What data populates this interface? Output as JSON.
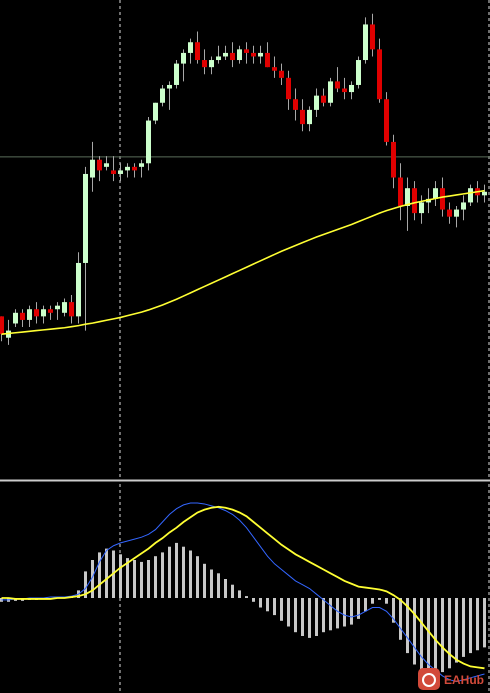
{
  "colors": {
    "background": "#000000",
    "bull_candle": "#ccffcc",
    "bear_candle": "#e00000",
    "wick": "#a8a8a8",
    "moving_average": "#ffff33",
    "signal_line": "#ffff33",
    "macd_line": "#3366ff",
    "histogram": "#c8c8c8",
    "grid_dashed": "#dddddd",
    "price_level_line": "#5a6e5a",
    "separator": "#cccccc",
    "watermark_bg": "#d24a3a"
  },
  "watermark": {
    "icon": "eahub-logo-icon",
    "text": "EAHub"
  },
  "chart_data": [
    {
      "type": "candlestick",
      "title": "",
      "xlabel": "",
      "ylabel": "",
      "ylim": [
        0,
        100
      ],
      "grid": "vertical-dashed",
      "legend": "none",
      "price_level": 63.8,
      "candles": [
        [
          19,
          19,
          12,
          14
        ],
        [
          13,
          18,
          11,
          15
        ],
        [
          17,
          21,
          16,
          20
        ],
        [
          20,
          21,
          16,
          18
        ],
        [
          18,
          22,
          16,
          21
        ],
        [
          21,
          23,
          17,
          19
        ],
        [
          19,
          22,
          17,
          21
        ],
        [
          21,
          22,
          18,
          20
        ],
        [
          21,
          23,
          18,
          22
        ],
        [
          20,
          24,
          19,
          23
        ],
        [
          23,
          25,
          17,
          19
        ],
        [
          19,
          37,
          17,
          34
        ],
        [
          34,
          61,
          15,
          59
        ],
        [
          58,
          68,
          54,
          63
        ],
        [
          63,
          64,
          57,
          60
        ],
        [
          61,
          64,
          60,
          62
        ],
        [
          60,
          64,
          57,
          59
        ],
        [
          59,
          62,
          57,
          60
        ],
        [
          60,
          62,
          58,
          61
        ],
        [
          61,
          62,
          58,
          60
        ],
        [
          61,
          63,
          58,
          62
        ],
        [
          62,
          75,
          60,
          74
        ],
        [
          74,
          79,
          73,
          79
        ],
        [
          79,
          84,
          78,
          83
        ],
        [
          83,
          85,
          77,
          84
        ],
        [
          84,
          91,
          83,
          90
        ],
        [
          90,
          94,
          85,
          93
        ],
        [
          93,
          97,
          90,
          96
        ],
        [
          96,
          99,
          90,
          91
        ],
        [
          91,
          94,
          87,
          89
        ],
        [
          89,
          92,
          87,
          91
        ],
        [
          91,
          95,
          90,
          92
        ],
        [
          92,
          95,
          91,
          93
        ],
        [
          93,
          96,
          89,
          91
        ],
        [
          91,
          95,
          90,
          94
        ],
        [
          94,
          96,
          90,
          93
        ],
        [
          93,
          95,
          90,
          92
        ],
        [
          92,
          95,
          90,
          93
        ],
        [
          93,
          96,
          89,
          89
        ],
        [
          89,
          92,
          86,
          88
        ],
        [
          88,
          90,
          84,
          86
        ],
        [
          86,
          88,
          77,
          80
        ],
        [
          80,
          83,
          74,
          77
        ],
        [
          77,
          80,
          71,
          73
        ],
        [
          73,
          78,
          71,
          77
        ],
        [
          77,
          83,
          75,
          81
        ],
        [
          81,
          83,
          78,
          79
        ],
        [
          79,
          86,
          78,
          85
        ],
        [
          85,
          89,
          82,
          83
        ],
        [
          83,
          86,
          80,
          82
        ],
        [
          82,
          85,
          80,
          84
        ],
        [
          84,
          92,
          83,
          91
        ],
        [
          91,
          103,
          90,
          101
        ],
        [
          101,
          104,
          92,
          94
        ],
        [
          94,
          97,
          79,
          80
        ],
        [
          80,
          82,
          67,
          68
        ],
        [
          68,
          70,
          55,
          58
        ],
        [
          58,
          62,
          46,
          50
        ],
        [
          50,
          58,
          43,
          55
        ],
        [
          55,
          57,
          46,
          48
        ],
        [
          48,
          53,
          45,
          51
        ],
        [
          51,
          55,
          48,
          52
        ],
        [
          52,
          57,
          50,
          55
        ],
        [
          55,
          58,
          47,
          49
        ],
        [
          49,
          51,
          45,
          47
        ],
        [
          47,
          50,
          44,
          49
        ],
        [
          49,
          53,
          46,
          51
        ],
        [
          51,
          56,
          50,
          55
        ],
        [
          55,
          57,
          51,
          53
        ],
        [
          53,
          56,
          51,
          54
        ]
      ],
      "moving_average": [
        14.0,
        14.2,
        14.4,
        14.6,
        14.8,
        15.0,
        15.2,
        15.4,
        15.6,
        15.8,
        16.1,
        16.4,
        16.8,
        17.1,
        17.5,
        17.9,
        18.3,
        18.7,
        19.2,
        19.7,
        20.2,
        20.8,
        21.5,
        22.2,
        23.0,
        23.8,
        24.7,
        25.6,
        26.5,
        27.4,
        28.3,
        29.2,
        30.1,
        31.0,
        31.9,
        32.8,
        33.7,
        34.6,
        35.5,
        36.4,
        37.3,
        38.1,
        38.9,
        39.7,
        40.5,
        41.3,
        42.0,
        42.7,
        43.4,
        44.1,
        44.8,
        45.6,
        46.4,
        47.2,
        48.0,
        48.7,
        49.3,
        49.9,
        50.4,
        50.9,
        51.3,
        51.7,
        52.1,
        52.5,
        52.8,
        53.1,
        53.4,
        53.7,
        54.0,
        54.3
      ]
    },
    {
      "type": "macd",
      "title": "",
      "xlabel": "",
      "ylabel": "",
      "ylim": [
        -100,
        100
      ],
      "legend": "none",
      "macd_line": [
        -2,
        -2,
        -1,
        -1,
        0,
        0,
        0,
        1,
        1,
        1,
        2,
        4,
        10,
        22,
        38,
        50,
        55,
        58,
        60,
        62,
        64,
        67,
        72,
        80,
        88,
        94,
        98,
        100,
        100,
        99,
        97,
        95,
        92,
        88,
        82,
        74,
        64,
        54,
        44,
        36,
        30,
        24,
        18,
        14,
        10,
        4,
        -2,
        -8,
        -14,
        -18,
        -20,
        -18,
        -14,
        -10,
        -10,
        -14,
        -22,
        -32,
        -42,
        -52,
        -62,
        -70,
        -76,
        -82,
        -86,
        -88,
        -86,
        -84,
        -82,
        -80
      ],
      "signal_line": [
        0,
        0,
        -1,
        -1,
        -1,
        -1,
        -1,
        -1,
        0,
        0,
        1,
        2,
        4,
        8,
        14,
        20,
        26,
        32,
        37,
        42,
        47,
        52,
        58,
        63,
        69,
        74,
        80,
        85,
        90,
        93,
        95,
        96,
        95,
        93,
        90,
        86,
        80,
        74,
        68,
        62,
        56,
        51,
        46,
        42,
        38,
        34,
        30,
        26,
        22,
        18,
        15,
        12,
        11,
        10,
        9,
        7,
        3,
        -2,
        -9,
        -17,
        -26,
        -35,
        -44,
        -52,
        -59,
        -65,
        -69,
        -72,
        -73,
        -74
      ],
      "histogram": [
        -4,
        -4,
        -3,
        -3,
        -2,
        -2,
        -1,
        0,
        1,
        1,
        2,
        8,
        28,
        40,
        48,
        52,
        50,
        46,
        42,
        40,
        38,
        40,
        44,
        48,
        54,
        58,
        54,
        50,
        44,
        36,
        30,
        26,
        20,
        14,
        8,
        2,
        -4,
        -10,
        -14,
        -18,
        -24,
        -30,
        -36,
        -40,
        -42,
        -40,
        -36,
        -34,
        -32,
        -30,
        -28,
        -22,
        -14,
        -6,
        -2,
        -6,
        -26,
        -44,
        -58,
        -70,
        -78,
        -84,
        -82,
        -78,
        -74,
        -68,
        -62,
        -58,
        -55,
        -52
      ]
    }
  ]
}
